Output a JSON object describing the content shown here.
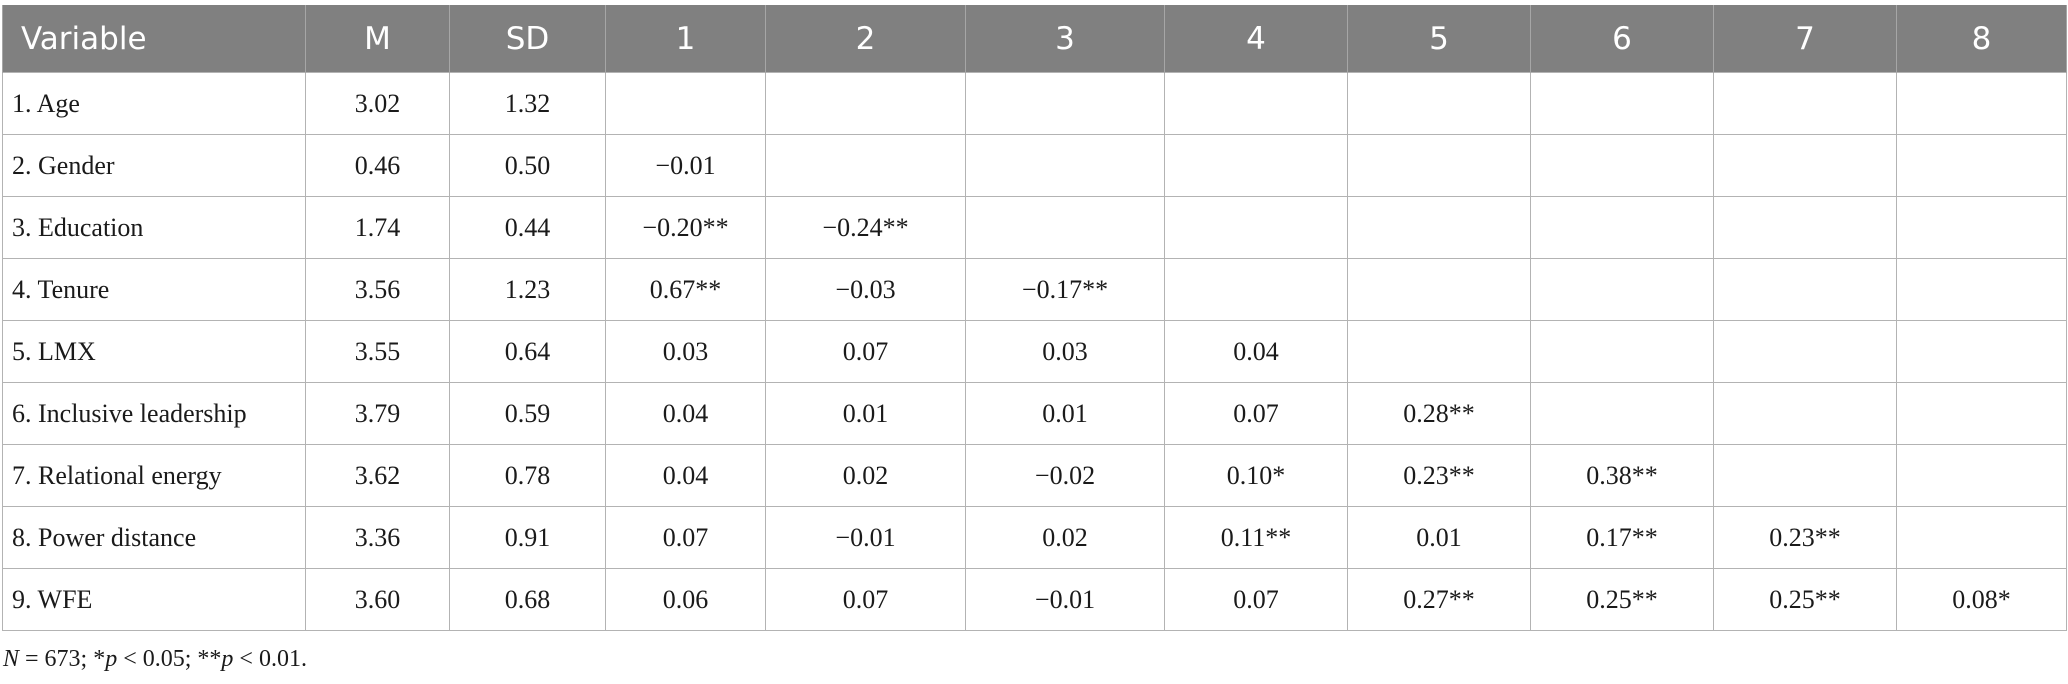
{
  "table": {
    "headers": [
      "Variable",
      "M",
      "SD",
      "1",
      "2",
      "3",
      "4",
      "5",
      "6",
      "7",
      "8"
    ],
    "rows": [
      [
        "1. Age",
        "3.02",
        "1.32",
        "",
        "",
        "",
        "",
        "",
        "",
        "",
        ""
      ],
      [
        "2. Gender",
        "0.46",
        "0.50",
        "−0.01",
        "",
        "",
        "",
        "",
        "",
        "",
        ""
      ],
      [
        "3. Education",
        "1.74",
        "0.44",
        "−0.20**",
        "−0.24**",
        "",
        "",
        "",
        "",
        "",
        ""
      ],
      [
        "4. Tenure",
        "3.56",
        "1.23",
        "0.67**",
        "−0.03",
        "−0.17**",
        "",
        "",
        "",
        "",
        ""
      ],
      [
        "5. LMX",
        "3.55",
        "0.64",
        "0.03",
        "0.07",
        "0.03",
        "0.04",
        "",
        "",
        "",
        ""
      ],
      [
        "6. Inclusive leadership",
        "3.79",
        "0.59",
        "0.04",
        "0.01",
        "0.01",
        "0.07",
        "0.28**",
        "",
        "",
        ""
      ],
      [
        "7. Relational energy",
        "3.62",
        "0.78",
        "0.04",
        "0.02",
        "−0.02",
        "0.10*",
        "0.23**",
        "0.38**",
        "",
        ""
      ],
      [
        "8. Power distance",
        "3.36",
        "0.91",
        "0.07",
        "−0.01",
        "0.02",
        "0.11**",
        "0.01",
        "0.17**",
        "0.23**",
        ""
      ],
      [
        "9. WFE",
        "3.60",
        "0.68",
        "0.06",
        "0.07",
        "−0.01",
        "0.07",
        "0.27**",
        "0.25**",
        "0.25**",
        "0.08*"
      ]
    ]
  },
  "note": {
    "n_symbol": "N",
    "n_text": " = 673; *",
    "p1_symbol": "p",
    "p1_text": " < 0.05; **",
    "p2_symbol": "p",
    "p2_text": " < 0.01."
  }
}
